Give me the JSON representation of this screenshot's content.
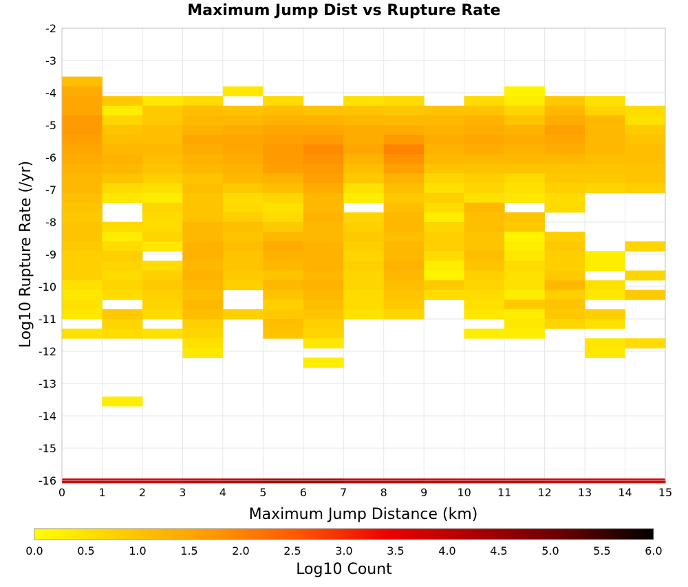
{
  "chart_data": {
    "type": "heatmap",
    "title": "Maximum Jump Dist vs Rupture Rate",
    "xlabel": "Maximum Jump Distance (km)",
    "ylabel": "Log10 Rupture Rate (/yr)",
    "colorbar_label": "Log10 Count",
    "xlim": [
      0,
      15
    ],
    "ylim": [
      -16,
      -2
    ],
    "x_ticks": [
      "0",
      "1",
      "2",
      "3",
      "4",
      "5",
      "6",
      "7",
      "8",
      "9",
      "10",
      "11",
      "12",
      "13",
      "14",
      "15"
    ],
    "y_ticks": [
      "-16",
      "-15",
      "-14",
      "-13",
      "-12",
      "-11",
      "-10",
      "-9",
      "-8",
      "-7",
      "-6",
      "-5",
      "-4",
      "-3",
      "-2"
    ],
    "colorbar_ticks": [
      "0.0",
      "0.5",
      "1.0",
      "1.5",
      "2.0",
      "2.5",
      "3.0",
      "3.5",
      "4.0",
      "4.5",
      "5.0",
      "5.5",
      "6.0"
    ],
    "color_range": [
      0,
      6
    ],
    "colormap": [
      "#ffff00",
      "#ffcc00",
      "#ff9900",
      "#ff5500",
      "#ee0000",
      "#aa0000",
      "#660000",
      "#000000"
    ],
    "grid": true,
    "x_bin_width": 1,
    "y_bin_height": 0.3,
    "bottom_band": {
      "y": -15.94,
      "values": [
        3.7,
        3.7,
        3.7,
        3.8,
        4.0,
        4.2,
        4.2,
        3.9,
        3.9,
        3.8,
        3.8,
        3.8,
        3.7,
        3.7,
        3.6
      ]
    },
    "cells": [
      {
        "x": 0,
        "y_start": -3.5,
        "values": [
          1.1,
          1.4,
          1.5,
          1.5,
          1.7,
          1.7,
          1.6,
          1.5,
          1.4,
          1.3,
          1.2,
          1.2,
          1.1,
          1.0,
          0.9,
          1.0,
          1.0,
          0.9,
          0.8,
          0.8,
          0.8,
          0.5,
          0.4,
          0.5,
          0.4,
          null,
          0.5
        ]
      },
      {
        "x": 1,
        "y_start": -4.1,
        "values": [
          0.9,
          0.3,
          0.7,
          1.0,
          1.1,
          1.2,
          1.3,
          1.2,
          1.0,
          0.6,
          0.4,
          null,
          null,
          0.6,
          0.3,
          0.6,
          0.8,
          0.7,
          0.6,
          0.7,
          0.6,
          null,
          0.9,
          0.7,
          0.6,
          null,
          null,
          null,
          null,
          null,
          null,
          0.3
        ]
      },
      {
        "x": 2,
        "y_start": -4.1,
        "values": [
          0.4,
          0.9,
          0.9,
          1.1,
          1.1,
          1.2,
          1.1,
          1.0,
          0.8,
          0.5,
          0.3,
          0.7,
          0.6,
          0.6,
          0.7,
          0.4,
          null,
          0.6,
          0.8,
          0.9,
          0.8,
          0.7,
          0.6,
          null,
          0.5
        ]
      },
      {
        "x": 3,
        "y_start": -4.1,
        "values": [
          0.6,
          1.1,
          1.2,
          1.3,
          1.5,
          1.4,
          1.3,
          1.2,
          1.0,
          1.1,
          1.0,
          1.0,
          1.0,
          1.2,
          1.2,
          1.3,
          1.3,
          1.2,
          1.3,
          1.2,
          1.1,
          1.2,
          1.1,
          0.8,
          0.7,
          0.5,
          0.4
        ]
      },
      {
        "x": 4,
        "y_start": -3.8,
        "values": [
          0.4,
          null,
          1.0,
          1.2,
          1.4,
          1.5,
          1.5,
          1.4,
          1.3,
          1.2,
          0.9,
          0.6,
          0.6,
          0.8,
          1.1,
          1.0,
          1.1,
          1.0,
          1.0,
          0.9,
          0.8,
          null,
          null,
          0.8
        ]
      },
      {
        "x": 5,
        "y_start": -4.1,
        "values": [
          0.6,
          1.1,
          1.3,
          1.5,
          1.6,
          1.7,
          1.7,
          1.6,
          1.3,
          1.1,
          0.7,
          0.5,
          0.6,
          0.9,
          1.2,
          1.4,
          1.3,
          1.2,
          1.0,
          1.2,
          1.0,
          0.8,
          0.9,
          1.1,
          1.0
        ]
      },
      {
        "x": 6,
        "y_start": -4.4,
        "values": [
          1.0,
          1.3,
          1.5,
          1.7,
          1.9,
          1.8,
          1.7,
          1.6,
          1.4,
          1.2,
          1.2,
          1.3,
          1.2,
          1.2,
          1.3,
          1.3,
          1.3,
          1.2,
          1.3,
          1.2,
          1.1,
          1.0,
          0.8,
          0.7,
          0.4,
          null,
          0.3
        ]
      },
      {
        "x": 7,
        "y_start": -4.1,
        "values": [
          0.5,
          1.0,
          1.2,
          1.4,
          1.4,
          1.5,
          1.3,
          1.1,
          0.9,
          0.5,
          0.3,
          null,
          0.7,
          0.8,
          0.9,
          0.8,
          0.7,
          0.8,
          0.7,
          0.7,
          0.6,
          0.6,
          0.5
        ]
      },
      {
        "x": 8,
        "y_start": -4.1,
        "values": [
          0.6,
          0.9,
          1.2,
          1.4,
          1.7,
          2.0,
          1.8,
          1.6,
          1.3,
          1.1,
          0.9,
          1.1,
          1.2,
          1.2,
          1.1,
          1.2,
          1.2,
          1.3,
          1.2,
          1.1,
          1.0,
          0.9,
          0.7
        ]
      },
      {
        "x": 9,
        "y_start": -4.4,
        "values": [
          1.0,
          1.2,
          1.3,
          1.4,
          1.3,
          1.2,
          1.0,
          0.7,
          0.5,
          0.8,
          0.6,
          0.3,
          0.7,
          0.8,
          0.8,
          0.6,
          0.3,
          0.2,
          0.9,
          0.6
        ]
      },
      {
        "x": 10,
        "y_start": -4.1,
        "values": [
          0.6,
          1.0,
          1.3,
          1.4,
          1.5,
          1.4,
          1.2,
          1.0,
          0.8,
          0.7,
          0.5,
          1.2,
          1.1,
          1.1,
          1.0,
          1.0,
          1.1,
          1.0,
          0.8,
          0.7,
          0.6,
          0.5,
          0.4,
          null,
          0.3
        ]
      },
      {
        "x": 11,
        "y_start": -3.8,
        "values": [
          0.2,
          0.3,
          0.7,
          1.0,
          1.3,
          1.4,
          1.3,
          1.2,
          1.0,
          0.6,
          0.5,
          0.4,
          null,
          1.0,
          0.9,
          0.2,
          0.3,
          0.4,
          0.6,
          0.5,
          0.5,
          0.3,
          0.9,
          0.3,
          0.4,
          0.3
        ]
      },
      {
        "x": 12,
        "y_start": -4.1,
        "values": [
          0.9,
          1.2,
          1.4,
          1.6,
          1.5,
          1.4,
          1.2,
          1.0,
          0.9,
          0.8,
          0.6,
          0.6,
          null,
          null,
          0.8,
          0.9,
          0.8,
          0.8,
          0.9,
          1.2,
          0.8,
          1.0,
          0.9,
          0.7
        ]
      },
      {
        "x": 13,
        "y_start": -4.1,
        "values": [
          0.5,
          0.7,
          1.2,
          1.2,
          1.2,
          1.2,
          1.1,
          1.0,
          0.9,
          0.7,
          null,
          null,
          null,
          null,
          null,
          null,
          0.3,
          0.3,
          null,
          0.5,
          0.4,
          null,
          0.8,
          0.5,
          null,
          0.4,
          0.4
        ]
      },
      {
        "x": 14,
        "y_start": -4.4,
        "values": [
          0.6,
          0.5,
          0.9,
          1.0,
          1.1,
          1.1,
          1.0,
          1.0,
          0.8,
          null,
          null,
          null,
          null,
          null,
          0.7,
          null,
          null,
          0.7,
          null,
          0.9,
          null,
          null,
          null,
          null,
          0.6
        ]
      }
    ]
  }
}
